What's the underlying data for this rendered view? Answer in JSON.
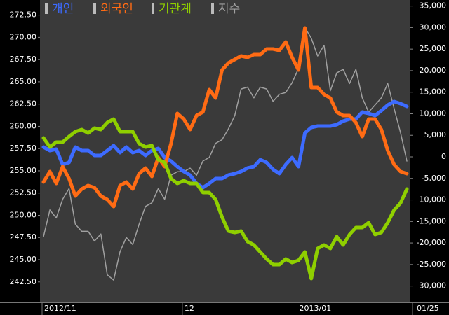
{
  "chart_data": {
    "type": "line",
    "categories": [
      "2012/11",
      null,
      null,
      null,
      null,
      null,
      null,
      null,
      null,
      null,
      null,
      null,
      null,
      null,
      null,
      null,
      null,
      null,
      null,
      null,
      null,
      null,
      "12",
      null,
      null,
      null,
      null,
      null,
      null,
      null,
      null,
      null,
      null,
      null,
      null,
      null,
      null,
      null,
      null,
      null,
      "2013/01",
      null,
      null,
      null,
      null,
      null,
      null,
      null,
      null,
      null,
      null,
      null,
      null,
      null,
      null,
      null,
      null,
      null
    ],
    "end_label": "01/25",
    "ylim": [
      240.2,
      274.2
    ],
    "yticks": [
      {
        "value": 242.5,
        "label": "242.50"
      },
      {
        "value": 245,
        "label": "245.00"
      },
      {
        "value": 247.5,
        "label": "247.50"
      },
      {
        "value": 250,
        "label": "250.00"
      },
      {
        "value": 252.5,
        "label": "252.50"
      },
      {
        "value": 255,
        "label": "255.00"
      },
      {
        "value": 257.5,
        "label": "257.50"
      },
      {
        "value": 260,
        "label": "260.00"
      },
      {
        "value": 262.5,
        "label": "262.50"
      },
      {
        "value": 265,
        "label": "265.00"
      },
      {
        "value": 267.5,
        "label": "267.50"
      },
      {
        "value": 270,
        "label": "270.00"
      },
      {
        "value": 272.5,
        "label": "272.50"
      }
    ],
    "y2lim": [
      -33800,
      36400
    ],
    "y2ticks": [
      {
        "value": -30000,
        "label": "-30,000"
      },
      {
        "value": -25000,
        "label": "-25,000"
      },
      {
        "value": -20000,
        "label": "-20,000"
      },
      {
        "value": -15000,
        "label": "-15,000"
      },
      {
        "value": -10000,
        "label": "-10,000"
      },
      {
        "value": -5000,
        "label": "-5,000"
      },
      0,
      {
        "value": 5000,
        "label": "5,000"
      },
      {
        "value": 10000,
        "label": "10,000"
      },
      {
        "value": 15000,
        "label": "15,000"
      },
      {
        "value": 20000,
        "label": "20,000"
      },
      {
        "value": 25000,
        "label": "25,000"
      },
      {
        "value": 30000,
        "label": "30,000"
      },
      {
        "value": 35000,
        "label": "35,000"
      }
    ],
    "series": [
      {
        "name": "개인",
        "color": "#3d6bff",
        "axis": "y2",
        "values": [
          2275,
          1460,
          1790,
          -1790,
          -1300,
          2275,
          1460,
          1460,
          325,
          325,
          1460,
          2600,
          975,
          2275,
          975,
          1460,
          325,
          1460,
          1950,
          -160,
          -975,
          -2275,
          -3400,
          -4225,
          -6175,
          -7150,
          -6175,
          -5040,
          -5040,
          -4225,
          -3900,
          -3400,
          -2600,
          -2275,
          -650,
          -1300,
          -2925,
          -3900,
          -1790,
          -160,
          -2275,
          5525,
          6825,
          7150,
          7150,
          7150,
          7475,
          8290,
          8775,
          8775,
          10400,
          10075,
          9590,
          10725,
          12025,
          12840,
          12350,
          11700
        ]
      },
      {
        "name": "외국인",
        "color": "#ff6b14",
        "axis": "y2",
        "values": [
          -5850,
          -3410,
          -6175,
          -2275,
          -5040,
          -9100,
          -7475,
          -6660,
          -7150,
          -9100,
          -9910,
          -11540,
          -6660,
          -5850,
          -7475,
          -3900,
          -2600,
          -4550,
          -160,
          -2275,
          3090,
          10075,
          8775,
          6340,
          9590,
          10400,
          15600,
          13650,
          20150,
          21775,
          22590,
          23400,
          23075,
          23725,
          23725,
          25025,
          25025,
          24700,
          26650,
          23075,
          20150,
          29900,
          16090,
          16090,
          14460,
          13650,
          10400,
          9590,
          9590,
          7960,
          4710,
          8775,
          8775,
          6340,
          1460,
          -1790,
          -3410,
          -3900
        ]
      },
      {
        "name": "기관계",
        "color": "#8fcf00",
        "axis": "y2",
        "values": [
          4390,
          2275,
          3410,
          3410,
          4710,
          5850,
          6340,
          5525,
          6660,
          6340,
          7960,
          8775,
          5850,
          5850,
          5850,
          3090,
          2275,
          2600,
          -650,
          -1300,
          -5040,
          -6175,
          -5525,
          -6175,
          -6175,
          -8290,
          -8290,
          -9910,
          -13975,
          -17225,
          -17550,
          -17225,
          -19660,
          -20475,
          -22100,
          -23725,
          -25025,
          -25025,
          -23725,
          -24540,
          -24050,
          -22100,
          -28275,
          -21290,
          -20475,
          -21290,
          -18525,
          -20475,
          -18040,
          -16410,
          -16410,
          -15275,
          -18040,
          -17550,
          -15275,
          -12350,
          -10725,
          -7475
        ]
      },
      {
        "name": "지수",
        "color": "#a0a0a0",
        "axis": "y",
        "values": [
          247.6,
          250.6,
          249.7,
          251.8,
          253.0,
          249.0,
          248.2,
          248.2,
          247.1,
          247.9,
          243.3,
          242.7,
          245.9,
          247.5,
          246.7,
          249.0,
          251.0,
          251.4,
          253.0,
          251.8,
          254.5,
          254.9,
          254.9,
          255.3,
          254.5,
          256.1,
          256.5,
          258.1,
          258.5,
          259.7,
          261.2,
          264.2,
          264.4,
          263.2,
          264.4,
          264.2,
          262.8,
          263.6,
          263.8,
          264.9,
          266.5,
          271.1,
          269.9,
          267.9,
          269.1,
          264.0,
          266.0,
          266.4,
          264.8,
          266.4,
          263.2,
          261.6,
          262.4,
          263.2,
          264.8,
          262.0,
          259.3,
          256.1
        ]
      }
    ]
  }
}
